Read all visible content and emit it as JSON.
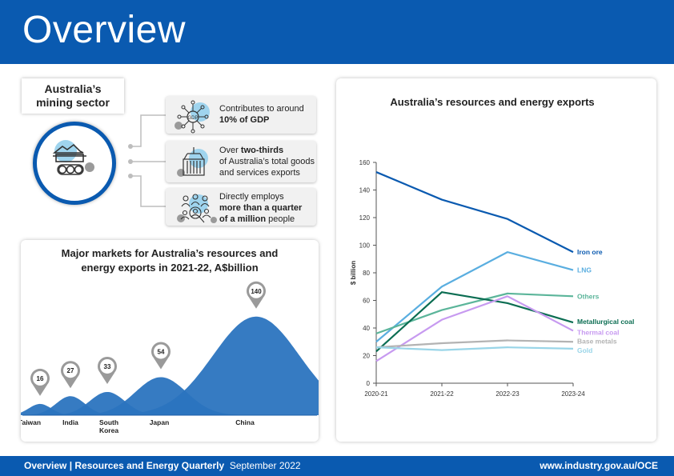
{
  "header": {
    "title": "Overview"
  },
  "mining": {
    "title": "Australia’s\nmining sector",
    "facts": [
      {
        "icon": "gdp-network-icon",
        "lines": [
          {
            "t": "Contributes to around",
            "b": false
          },
          {
            "t": "10% of GDP",
            "b": true
          }
        ]
      },
      {
        "icon": "shipping-container-icon",
        "lines": [
          {
            "t": "Over ",
            "b": false,
            "bold": "two-thirds"
          },
          {
            "t": "of Australia’s total goods",
            "b": false
          },
          {
            "t": "and services exports",
            "b": false
          }
        ]
      },
      {
        "icon": "people-employment-icon",
        "lines": [
          {
            "t": "Directly employs",
            "b": false
          },
          {
            "t": "more than a quarter",
            "b": true
          },
          {
            "t": "of a million",
            "b": true,
            "rest": " people"
          }
        ]
      }
    ]
  },
  "markets": {
    "title_line1": "Major markets for Australia’s resources and",
    "title_line2": "energy exports in 2021-22, A$billion",
    "items": [
      {
        "label": "Taiwan",
        "value": 16
      },
      {
        "label": "India",
        "value": 27
      },
      {
        "label": "South\nKorea",
        "value": 33
      },
      {
        "label": "Japan",
        "value": 54
      },
      {
        "label": "China",
        "value": 140
      }
    ]
  },
  "chart_data": [
    {
      "type": "line",
      "title": "Australia’s resources and energy exports",
      "xlabel": "",
      "ylabel": "$ billion",
      "categories": [
        "2020-21",
        "2021-22",
        "2022-23",
        "2023-24"
      ],
      "ylim": [
        0,
        160
      ],
      "yticks": [
        0,
        20,
        40,
        60,
        80,
        100,
        120,
        140,
        160
      ],
      "grid": false,
      "legend": "inline-right",
      "series": [
        {
          "name": "Iron ore",
          "color": "#0a5ab0",
          "values": [
            153,
            133,
            119,
            95
          ]
        },
        {
          "name": "LNG",
          "color": "#5aaee0",
          "values": [
            30,
            70,
            95,
            82
          ]
        },
        {
          "name": "Others",
          "color": "#5bb59a",
          "values": [
            36,
            53,
            65,
            63
          ]
        },
        {
          "name": "Metallurgical coal",
          "color": "#0b6d52",
          "values": [
            23,
            66,
            58,
            44
          ]
        },
        {
          "name": "Thermal coal",
          "color": "#c79af0",
          "values": [
            16,
            46,
            63,
            38
          ]
        },
        {
          "name": "Base metals",
          "color": "#b3b3b3",
          "values": [
            26,
            29,
            31,
            30
          ]
        },
        {
          "name": "Gold",
          "color": "#99d5e8",
          "values": [
            26,
            24,
            26,
            25
          ]
        }
      ]
    },
    {
      "type": "area",
      "title": "Major markets for Australia’s resources and energy exports in 2021-22, A$billion",
      "categories": [
        "Taiwan",
        "India",
        "South Korea",
        "Japan",
        "China"
      ],
      "values": [
        16,
        27,
        33,
        54,
        140
      ]
    }
  ],
  "footer": {
    "left_bold": "Overview | Resources and Energy Quarterly",
    "left_rest": "September 2022",
    "right": "www.industry.gov.au/OCE"
  }
}
